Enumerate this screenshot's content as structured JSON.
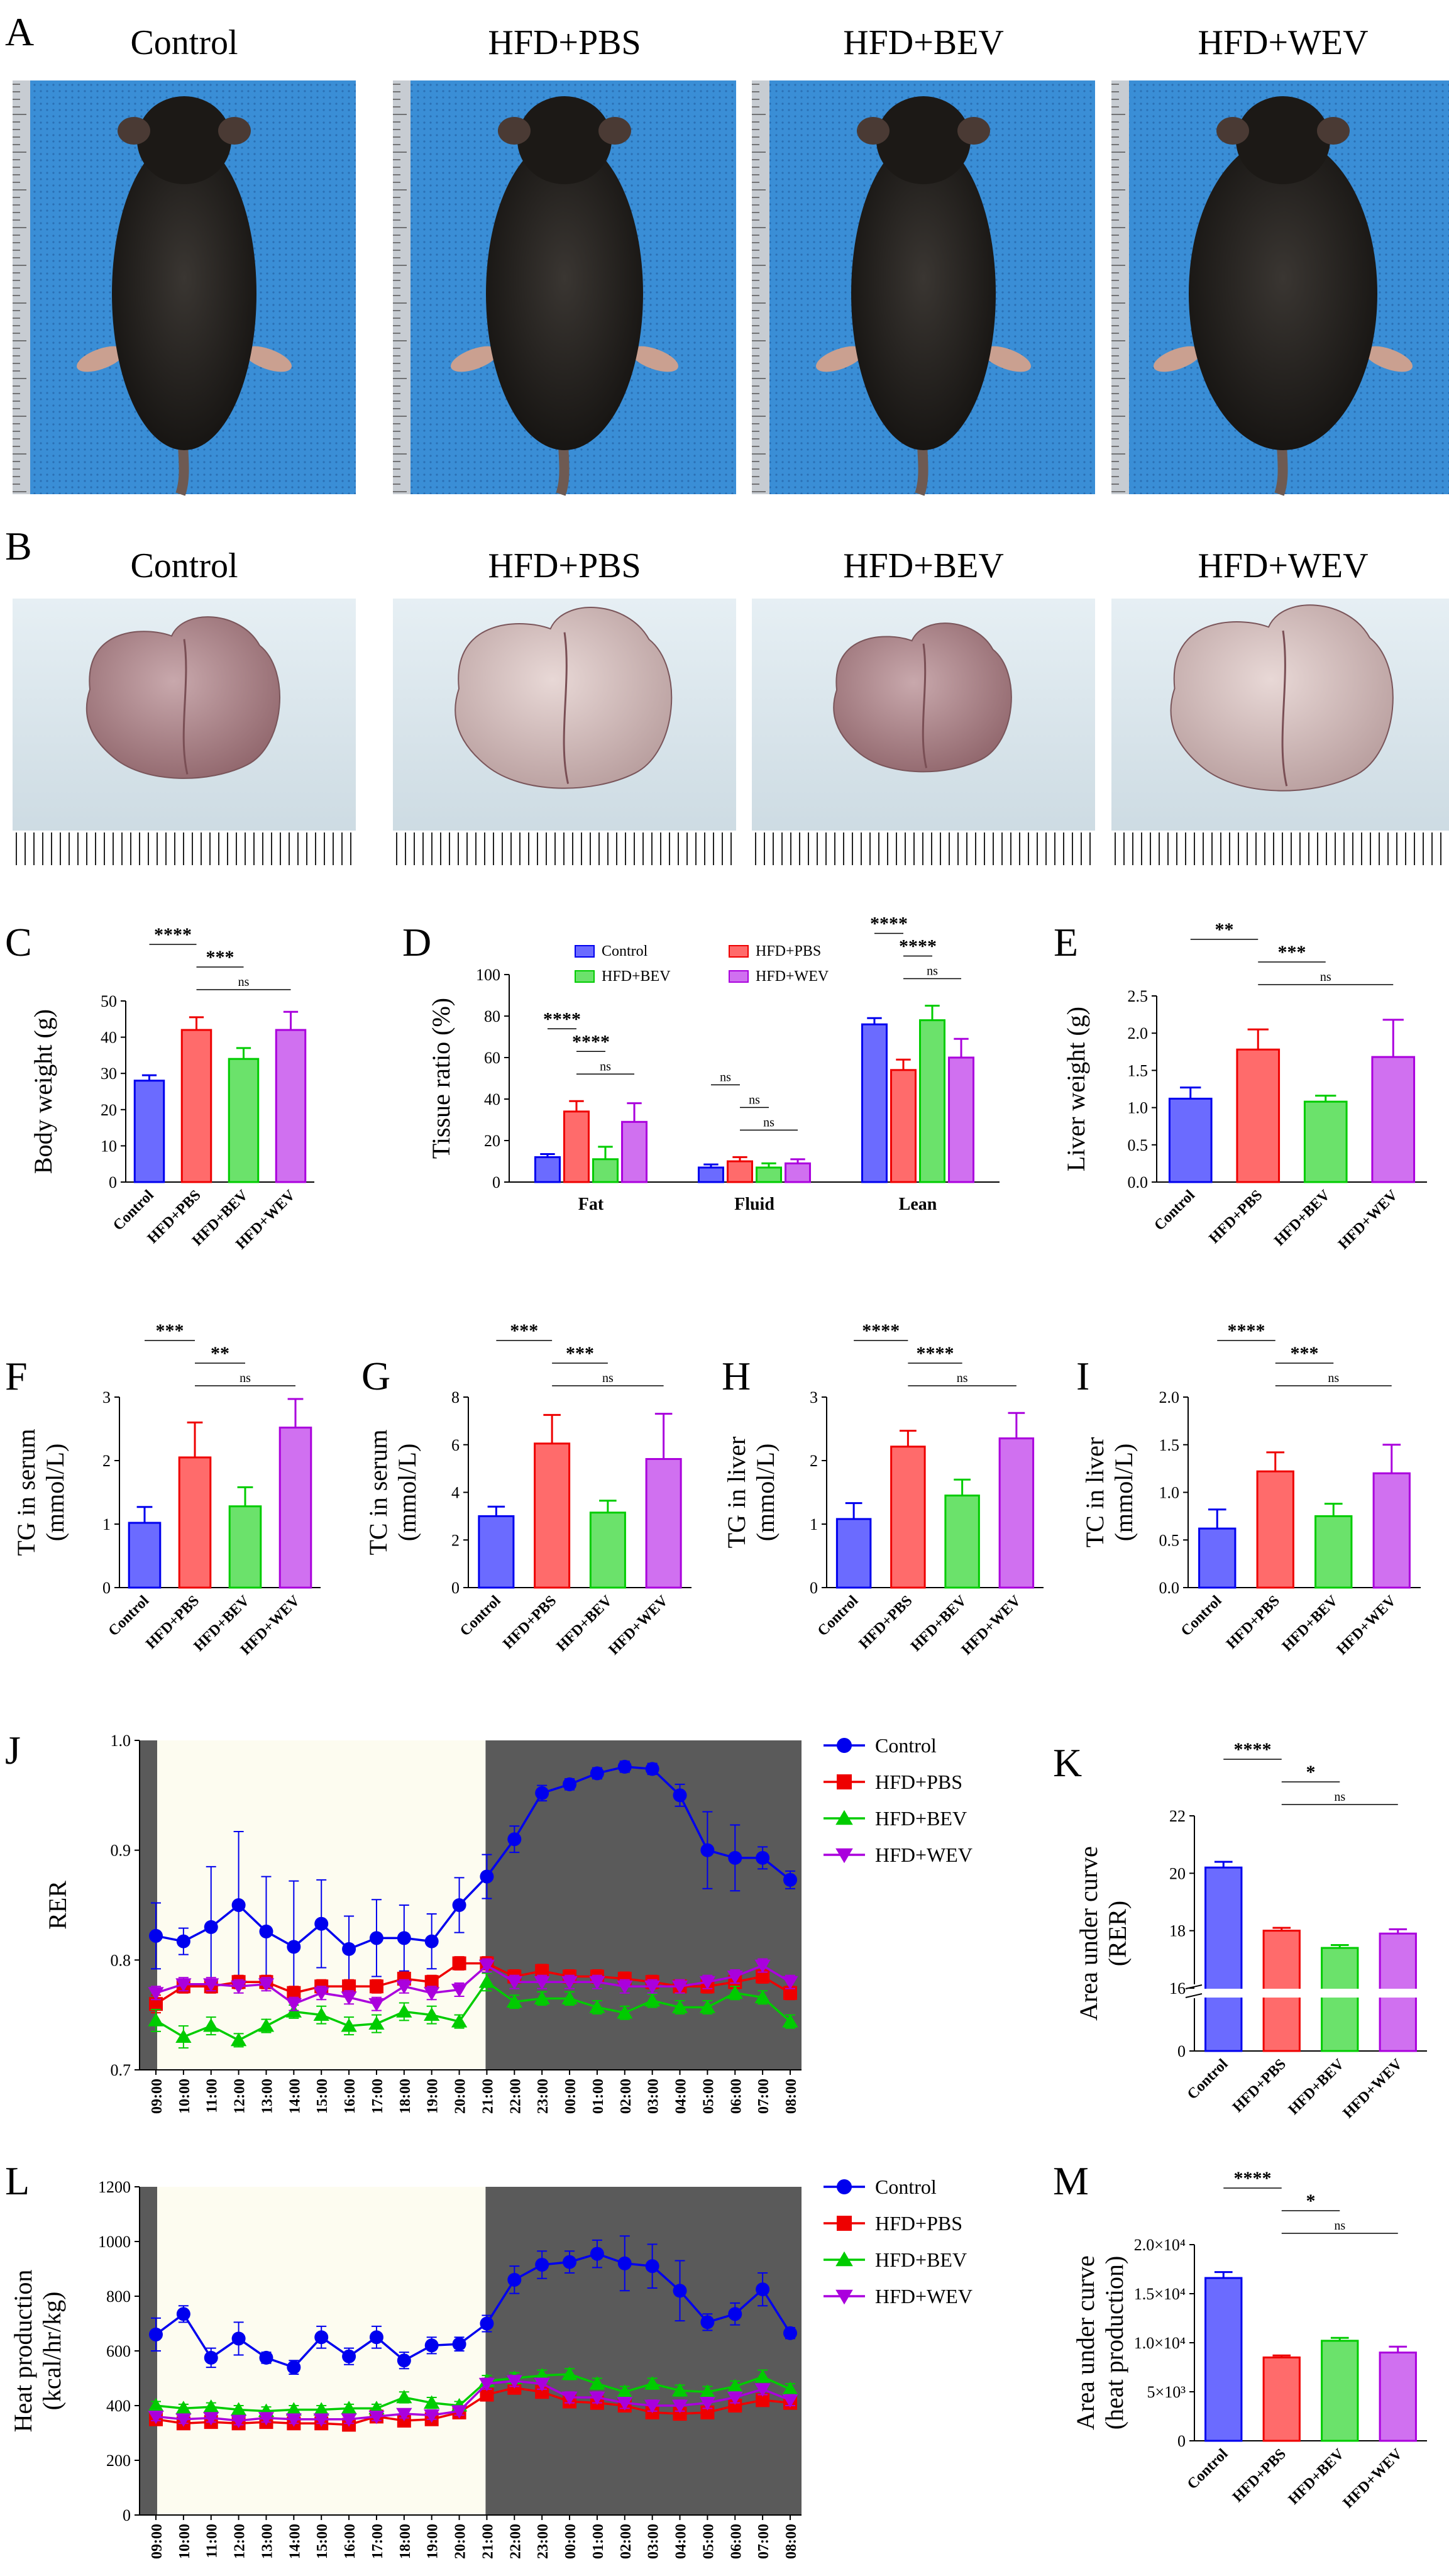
{
  "colors": {
    "control": "#6b6bff",
    "pbs": "#ff6b6b",
    "bev": "#6be26b",
    "wev": "#d070f0",
    "control_line": "#0000ee",
    "pbs_line": "#ee0000",
    "bev_line": "#00cc00",
    "wev_line": "#aa00dd",
    "photo_blue": "#3a8ed6",
    "dark_phase": "#5a5a5a",
    "light_phase": "#fdfcf0"
  },
  "panels": {
    "A": {
      "label": "A",
      "groups": [
        "Control",
        "HFD+PBS",
        "HFD+BEV",
        "HFD+WEV"
      ],
      "photo_content": [
        "mouse",
        "mouse",
        "mouse",
        "mouse"
      ]
    },
    "B": {
      "label": "B",
      "groups": [
        "Control",
        "HFD+PBS",
        "HFD+BEV",
        "HFD+WEV"
      ],
      "photo_content": [
        "liver",
        "liver",
        "liver",
        "liver"
      ]
    }
  },
  "chart_data": [
    {
      "id": "C",
      "label": "C",
      "type": "bar",
      "categories": [
        "Control",
        "HFD+PBS",
        "HFD+BEV",
        "HFD+WEV"
      ],
      "values": [
        28,
        42,
        34,
        42
      ],
      "errors": [
        1.5,
        3.5,
        3,
        5
      ],
      "ylabel": "Body weight (g)",
      "ylim": [
        0,
        50
      ],
      "yticks": [
        "0",
        "10",
        "20",
        "30",
        "40",
        "50"
      ],
      "significance": [
        {
          "from": 0,
          "to": 1,
          "text": "****"
        },
        {
          "from": 1,
          "to": 2,
          "text": "***"
        },
        {
          "from": 1,
          "to": 3,
          "text": "ns"
        }
      ]
    },
    {
      "id": "D",
      "label": "D",
      "type": "bar",
      "categories": [
        "Fat",
        "Fluid",
        "Lean"
      ],
      "series": [
        {
          "name": "Control",
          "values": [
            12,
            7,
            76
          ],
          "errors": [
            1.5,
            1.5,
            3
          ]
        },
        {
          "name": "HFD+PBS",
          "values": [
            34,
            10,
            54
          ],
          "errors": [
            5,
            2,
            5
          ]
        },
        {
          "name": "HFD+BEV",
          "values": [
            11,
            7,
            78
          ],
          "errors": [
            6,
            2,
            7
          ]
        },
        {
          "name": "HFD+WEV",
          "values": [
            29,
            9,
            60
          ],
          "errors": [
            9,
            2,
            9
          ]
        }
      ],
      "ylabel": "Tissue ratio (%)",
      "ylim": [
        0,
        100
      ],
      "yticks": [
        "0",
        "20",
        "40",
        "60",
        "80",
        "100"
      ],
      "significance": [
        {
          "cat": 0,
          "from": 0,
          "to": 1,
          "text": "****"
        },
        {
          "cat": 0,
          "from": 1,
          "to": 2,
          "text": "****"
        },
        {
          "cat": 0,
          "from": 1,
          "to": 3,
          "text": "ns"
        },
        {
          "cat": 1,
          "from": 0,
          "to": 1,
          "text": "ns"
        },
        {
          "cat": 1,
          "from": 1,
          "to": 2,
          "text": "ns"
        },
        {
          "cat": 1,
          "from": 1,
          "to": 3,
          "text": "ns"
        },
        {
          "cat": 2,
          "from": 0,
          "to": 1,
          "text": "****"
        },
        {
          "cat": 2,
          "from": 1,
          "to": 2,
          "text": "****"
        },
        {
          "cat": 2,
          "from": 1,
          "to": 3,
          "text": "ns"
        }
      ]
    },
    {
      "id": "E",
      "label": "E",
      "type": "bar",
      "categories": [
        "Control",
        "HFD+PBS",
        "HFD+BEV",
        "HFD+WEV"
      ],
      "values": [
        1.12,
        1.78,
        1.08,
        1.68
      ],
      "errors": [
        0.15,
        0.27,
        0.08,
        0.5
      ],
      "ylabel": "Liver weight (g)",
      "ylim": [
        0,
        2.5
      ],
      "yticks": [
        "0.0",
        "0.5",
        "1.0",
        "1.5",
        "2.0",
        "2.5"
      ],
      "significance": [
        {
          "from": 0,
          "to": 1,
          "text": "**"
        },
        {
          "from": 1,
          "to": 2,
          "text": "***"
        },
        {
          "from": 1,
          "to": 3,
          "text": "ns"
        }
      ]
    },
    {
      "id": "F",
      "label": "F",
      "type": "bar",
      "categories": [
        "Control",
        "HFD+PBS",
        "HFD+BEV",
        "HFD+WEV"
      ],
      "values": [
        1.02,
        2.05,
        1.28,
        2.52
      ],
      "errors": [
        0.25,
        0.55,
        0.3,
        0.45
      ],
      "ylabel": [
        "TG in serum",
        "(mmol/L)"
      ],
      "ylim": [
        0,
        3
      ],
      "yticks": [
        "0",
        "1",
        "2",
        "3"
      ],
      "significance": [
        {
          "from": 0,
          "to": 1,
          "text": "***"
        },
        {
          "from": 1,
          "to": 2,
          "text": "**"
        },
        {
          "from": 1,
          "to": 3,
          "text": "ns"
        }
      ]
    },
    {
      "id": "G",
      "label": "G",
      "type": "bar",
      "categories": [
        "Control",
        "HFD+PBS",
        "HFD+BEV",
        "HFD+WEV"
      ],
      "values": [
        3.0,
        6.05,
        3.15,
        5.4
      ],
      "errors": [
        0.4,
        1.2,
        0.5,
        1.9
      ],
      "ylabel": [
        "TC in serum",
        "(mmol/L)"
      ],
      "ylim": [
        0,
        8
      ],
      "yticks": [
        "0",
        "2",
        "4",
        "6",
        "8"
      ],
      "significance": [
        {
          "from": 0,
          "to": 1,
          "text": "***"
        },
        {
          "from": 1,
          "to": 2,
          "text": "***"
        },
        {
          "from": 1,
          "to": 3,
          "text": "ns"
        }
      ]
    },
    {
      "id": "H",
      "label": "H",
      "type": "bar",
      "categories": [
        "Control",
        "HFD+PBS",
        "HFD+BEV",
        "HFD+WEV"
      ],
      "values": [
        1.08,
        2.22,
        1.45,
        2.35
      ],
      "errors": [
        0.25,
        0.25,
        0.25,
        0.4
      ],
      "ylabel": [
        "TG in liver",
        "(mmol/L)"
      ],
      "ylim": [
        0,
        3
      ],
      "yticks": [
        "0",
        "1",
        "2",
        "3"
      ],
      "significance": [
        {
          "from": 0,
          "to": 1,
          "text": "****"
        },
        {
          "from": 1,
          "to": 2,
          "text": "****"
        },
        {
          "from": 1,
          "to": 3,
          "text": "ns"
        }
      ]
    },
    {
      "id": "I",
      "label": "I",
      "type": "bar",
      "categories": [
        "Control",
        "HFD+PBS",
        "HFD+BEV",
        "HFD+WEV"
      ],
      "values": [
        0.62,
        1.22,
        0.75,
        1.2
      ],
      "errors": [
        0.2,
        0.2,
        0.13,
        0.3
      ],
      "ylabel": [
        "TC in liver",
        "(mmol/L)"
      ],
      "ylim": [
        0,
        2.0
      ],
      "yticks": [
        "0.0",
        "0.5",
        "1.0",
        "1.5",
        "2.0"
      ],
      "significance": [
        {
          "from": 0,
          "to": 1,
          "text": "****"
        },
        {
          "from": 1,
          "to": 2,
          "text": "***"
        },
        {
          "from": 1,
          "to": 3,
          "text": "ns"
        }
      ]
    },
    {
      "id": "J",
      "label": "J",
      "type": "line",
      "x": [
        "09:00",
        "10:00",
        "11:00",
        "12:00",
        "13:00",
        "14:00",
        "15:00",
        "16:00",
        "17:00",
        "18:00",
        "19:00",
        "20:00",
        "21:00",
        "22:00",
        "23:00",
        "00:00",
        "01:00",
        "02:00",
        "03:00",
        "04:00",
        "05:00",
        "06:00",
        "07:00",
        "08:00"
      ],
      "ylabel": "RER",
      "ylim": [
        0.7,
        1.0
      ],
      "yticks": [
        "0.7",
        "0.8",
        "0.9",
        "1.0"
      ],
      "dark_phase_start_index": 12,
      "series": [
        {
          "name": "Control",
          "values": [
            0.822,
            0.817,
            0.83,
            0.85,
            0.826,
            0.812,
            0.833,
            0.81,
            0.82,
            0.82,
            0.817,
            0.85,
            0.876,
            0.91,
            0.952,
            0.96,
            0.97,
            0.976,
            0.974,
            0.95,
            0.9,
            0.893,
            0.893,
            0.873
          ],
          "errors": [
            0.03,
            0.012,
            0.055,
            0.067,
            0.05,
            0.06,
            0.04,
            0.03,
            0.035,
            0.03,
            0.025,
            0.025,
            0.02,
            0.012,
            0.007,
            0.005,
            0.005,
            0.005,
            0.005,
            0.01,
            0.035,
            0.03,
            0.01,
            0.008
          ]
        },
        {
          "name": "HFD+PBS",
          "values": [
            0.76,
            0.776,
            0.776,
            0.78,
            0.78,
            0.77,
            0.776,
            0.776,
            0.776,
            0.783,
            0.78,
            0.797,
            0.797,
            0.785,
            0.79,
            0.785,
            0.785,
            0.783,
            0.78,
            0.776,
            0.776,
            0.78,
            0.785,
            0.77
          ],
          "errors": [
            0.008,
            0.006,
            0.006,
            0.006,
            0.006,
            0.006,
            0.006,
            0.006,
            0.006,
            0.006,
            0.006,
            0.006,
            0.006,
            0.006,
            0.006,
            0.006,
            0.006,
            0.006,
            0.006,
            0.006,
            0.006,
            0.006,
            0.006,
            0.006
          ]
        },
        {
          "name": "HFD+BEV",
          "values": [
            0.745,
            0.73,
            0.74,
            0.727,
            0.74,
            0.753,
            0.75,
            0.74,
            0.742,
            0.753,
            0.75,
            0.744,
            0.78,
            0.762,
            0.765,
            0.765,
            0.757,
            0.752,
            0.763,
            0.757,
            0.757,
            0.77,
            0.766,
            0.744
          ],
          "errors": [
            0.01,
            0.01,
            0.008,
            0.006,
            0.006,
            0.006,
            0.008,
            0.008,
            0.008,
            0.008,
            0.008,
            0.006,
            0.008,
            0.006,
            0.006,
            0.006,
            0.006,
            0.006,
            0.006,
            0.006,
            0.006,
            0.006,
            0.006,
            0.006
          ]
        },
        {
          "name": "HFD+WEV",
          "values": [
            0.77,
            0.778,
            0.778,
            0.776,
            0.778,
            0.76,
            0.77,
            0.766,
            0.76,
            0.776,
            0.77,
            0.773,
            0.795,
            0.78,
            0.78,
            0.78,
            0.78,
            0.776,
            0.776,
            0.776,
            0.78,
            0.785,
            0.795,
            0.78
          ],
          "errors": [
            0.006,
            0.006,
            0.006,
            0.006,
            0.006,
            0.006,
            0.006,
            0.006,
            0.006,
            0.006,
            0.006,
            0.006,
            0.006,
            0.006,
            0.006,
            0.006,
            0.006,
            0.006,
            0.006,
            0.006,
            0.006,
            0.006,
            0.006,
            0.006
          ]
        }
      ],
      "legend": [
        "Control",
        "HFD+PBS",
        "HFD+BEV",
        "HFD+WEV"
      ]
    },
    {
      "id": "K",
      "label": "K",
      "type": "bar",
      "categories": [
        "Control",
        "HFD+PBS",
        "HFD+BEV",
        "HFD+WEV"
      ],
      "values": [
        20.2,
        18.0,
        17.4,
        17.9
      ],
      "errors": [
        0.2,
        0.1,
        0.1,
        0.15
      ],
      "ylabel": [
        "Area under curve",
        "(RER)"
      ],
      "axis_break": [
        0,
        16
      ],
      "yticks_upper": [
        "16",
        "18",
        "20",
        "22"
      ],
      "yticks_lower": [
        "0"
      ],
      "significance": [
        {
          "from": 0,
          "to": 1,
          "text": "****"
        },
        {
          "from": 1,
          "to": 2,
          "text": "*"
        },
        {
          "from": 1,
          "to": 3,
          "text": "ns"
        }
      ]
    },
    {
      "id": "L",
      "label": "L",
      "type": "line",
      "x": [
        "09:00",
        "10:00",
        "11:00",
        "12:00",
        "13:00",
        "14:00",
        "15:00",
        "16:00",
        "17:00",
        "18:00",
        "19:00",
        "20:00",
        "21:00",
        "22:00",
        "23:00",
        "00:00",
        "01:00",
        "02:00",
        "03:00",
        "04:00",
        "05:00",
        "06:00",
        "07:00",
        "08:00"
      ],
      "ylabel": [
        "Heat production",
        "(kcal/hr/kg)"
      ],
      "ylim": [
        0,
        1200
      ],
      "yticks": [
        "0",
        "200",
        "400",
        "600",
        "800",
        "1000",
        "1200"
      ],
      "dark_phase_start_index": 12,
      "series": [
        {
          "name": "Control",
          "values": [
            660,
            735,
            575,
            645,
            575,
            540,
            650,
            580,
            650,
            565,
            620,
            625,
            700,
            860,
            915,
            925,
            955,
            920,
            910,
            820,
            705,
            735,
            825,
            665
          ],
          "errors": [
            60,
            30,
            35,
            60,
            20,
            25,
            40,
            30,
            40,
            30,
            30,
            25,
            30,
            50,
            50,
            40,
            50,
            100,
            80,
            110,
            30,
            40,
            60,
            20
          ]
        },
        {
          "name": "HFD+PBS",
          "values": [
            350,
            335,
            340,
            335,
            340,
            335,
            335,
            330,
            360,
            345,
            350,
            375,
            440,
            465,
            450,
            415,
            410,
            400,
            375,
            370,
            375,
            400,
            420,
            410
          ],
          "errors": [
            15,
            15,
            15,
            15,
            15,
            15,
            15,
            15,
            15,
            15,
            15,
            15,
            20,
            20,
            20,
            20,
            20,
            20,
            20,
            20,
            20,
            20,
            20,
            20
          ]
        },
        {
          "name": "HFD+BEV",
          "values": [
            400,
            390,
            395,
            385,
            380,
            385,
            385,
            390,
            390,
            430,
            410,
            400,
            490,
            500,
            510,
            515,
            480,
            450,
            480,
            455,
            450,
            470,
            505,
            460
          ],
          "errors": [
            15,
            15,
            15,
            15,
            15,
            15,
            15,
            15,
            15,
            20,
            20,
            15,
            20,
            20,
            20,
            20,
            20,
            20,
            20,
            20,
            20,
            20,
            25,
            20
          ]
        },
        {
          "name": "HFD+WEV",
          "values": [
            360,
            350,
            355,
            345,
            355,
            350,
            350,
            350,
            360,
            370,
            365,
            380,
            480,
            490,
            480,
            430,
            430,
            410,
            400,
            400,
            410,
            430,
            460,
            420
          ],
          "errors": [
            15,
            15,
            15,
            15,
            15,
            15,
            15,
            15,
            15,
            15,
            15,
            15,
            20,
            20,
            20,
            20,
            20,
            20,
            20,
            20,
            20,
            20,
            20,
            20
          ]
        }
      ],
      "legend": [
        "Control",
        "HFD+PBS",
        "HFD+BEV",
        "HFD+WEV"
      ]
    },
    {
      "id": "M",
      "label": "M",
      "type": "bar",
      "categories": [
        "Control",
        "HFD+PBS",
        "HFD+BEV",
        "HFD+WEV"
      ],
      "values": [
        16600,
        8500,
        10200,
        9000
      ],
      "errors": [
        600,
        200,
        300,
        600
      ],
      "ylabel": [
        "Area under curve",
        "(heat production)"
      ],
      "ylim": [
        0,
        20000
      ],
      "yticks": [
        "0",
        "5×10³",
        "1.0×10⁴",
        "1.5×10⁴",
        "2.0×10⁴"
      ],
      "significance": [
        {
          "from": 0,
          "to": 1,
          "text": "****"
        },
        {
          "from": 1,
          "to": 2,
          "text": "*"
        },
        {
          "from": 1,
          "to": 3,
          "text": "ns"
        }
      ]
    }
  ]
}
